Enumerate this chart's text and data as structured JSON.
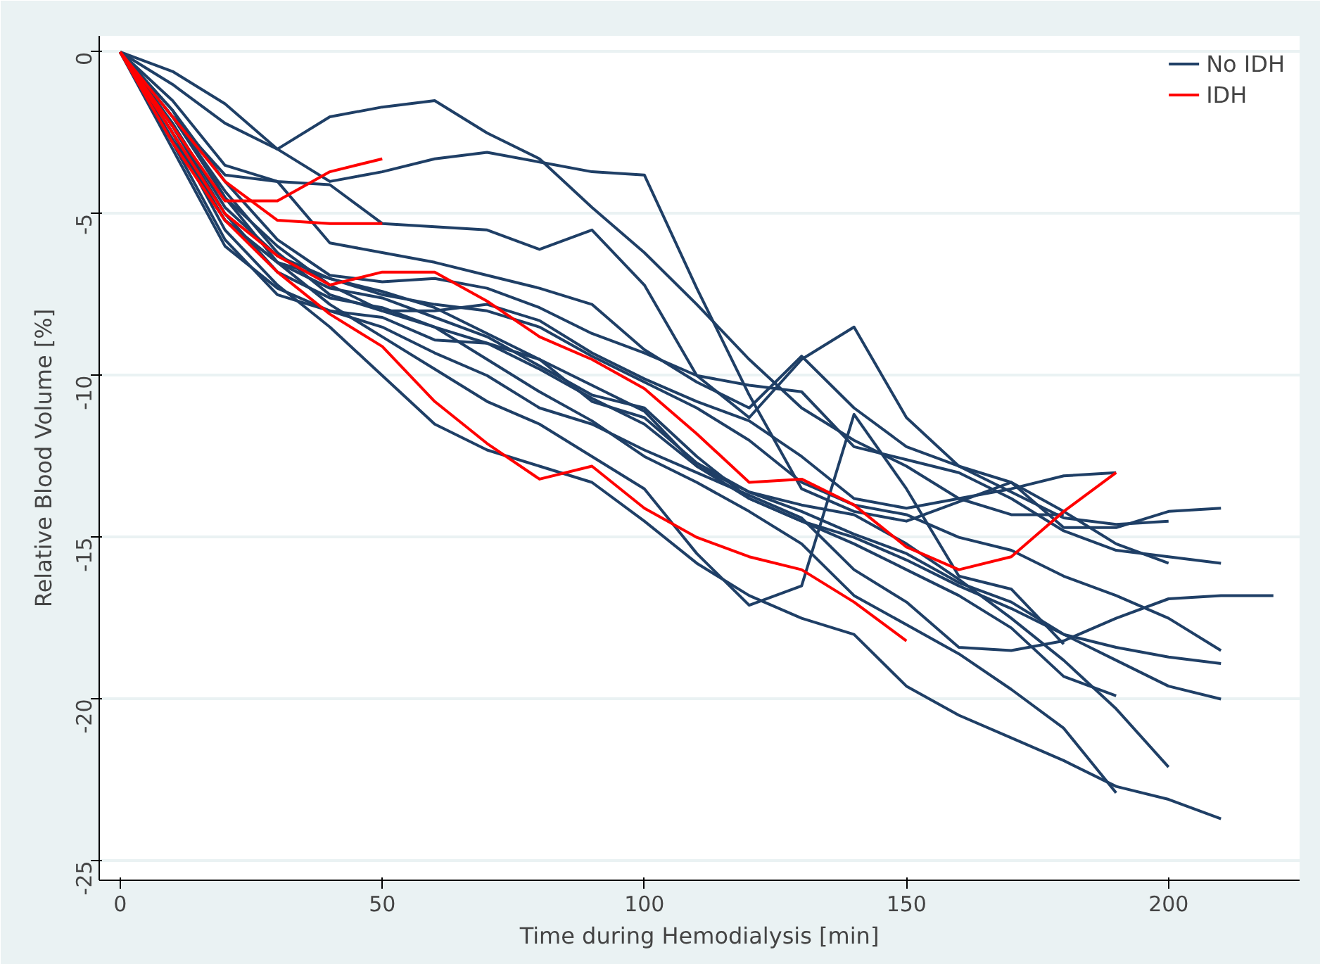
{
  "chart_data": {
    "type": "line",
    "xlabel": "Time during Hemodialysis [min]",
    "ylabel": "Relative Blood Volume [%]",
    "x": [
      0,
      10,
      20,
      30,
      40,
      50,
      60,
      70,
      80,
      90,
      100,
      110,
      120,
      130,
      140,
      150,
      160,
      170,
      180,
      190,
      200,
      210,
      220
    ],
    "xlim": [
      -4,
      225
    ],
    "ylim": [
      -25.6,
      0.5
    ],
    "xticks": [
      0,
      50,
      100,
      150,
      200
    ],
    "yticks": [
      0,
      -5,
      -10,
      -15,
      -20,
      -25
    ],
    "grid": "y",
    "legend": "top right",
    "line_style": "solid",
    "marker": "none",
    "series": [
      {
        "name": "No IDH",
        "color": "#1f3f66",
        "values": [
          0,
          -1,
          -2.2,
          -3,
          -2,
          -1.7,
          -1.5,
          -2.5,
          -3.3,
          -4.8,
          -6.2,
          -7.8,
          -9.5,
          -11,
          -12,
          -12.8,
          -13.8,
          -13.5,
          -13.1,
          -13,
          null,
          null,
          null
        ]
      },
      {
        "color": "#1f3f66",
        "values": [
          0,
          -0.6,
          -1.6,
          -3,
          -4,
          -3.7,
          -3.3,
          -3.1,
          -3.4,
          -3.7,
          -3.8,
          -7.3,
          -10.6,
          -13.5,
          -14.2,
          -14.5,
          -13.9,
          -13.3,
          -14.7,
          -14.7,
          -14.2,
          -14.1,
          null
        ]
      },
      {
        "color": "#1f3f66",
        "values": [
          0,
          -1.5,
          -3.5,
          -4,
          -4.1,
          -5.3,
          -5.4,
          -5.5,
          -6.1,
          -5.5,
          -7.2,
          -10,
          -11.3,
          -9.5,
          -8.5,
          -11.3,
          -12.8,
          -13.6,
          -14.4,
          -14.6,
          -14.5,
          null,
          null
        ]
      },
      {
        "color": "#1f3f66",
        "values": [
          0,
          -2,
          -3.8,
          -4,
          -5.9,
          -6.2,
          -6.5,
          -6.9,
          -7.3,
          -7.8,
          -9.2,
          -10.2,
          -11,
          -9.4,
          -11,
          -12.2,
          -12.8,
          -13.3,
          -14.2,
          -15.2,
          -15.8,
          null,
          null
        ]
      },
      {
        "color": "#1f3f66",
        "values": [
          0,
          -1.8,
          -4,
          -5.8,
          -6.9,
          -7.1,
          -7,
          -7.3,
          -7.9,
          -8.7,
          -9.3,
          -10,
          -10.3,
          -10.5,
          -12.2,
          -12.6,
          -13,
          -13.8,
          -14.8,
          -15.4,
          -15.6,
          -15.8,
          null
        ]
      },
      {
        "color": "#1f3f66",
        "values": [
          0,
          -3,
          -6,
          -7.3,
          -8,
          -8.5,
          -9.3,
          -10,
          -11,
          -11.5,
          -12.3,
          -13,
          -13.7,
          -14.4,
          -16,
          -17,
          -18.4,
          -18.5,
          -18.2,
          -17.5,
          -16.9,
          -16.8,
          -16.8
        ]
      },
      {
        "color": "#1f3f66",
        "values": [
          0,
          -2.2,
          -4.8,
          -6.3,
          -7,
          -7.5,
          -7.8,
          -8,
          -8.5,
          -9.4,
          -10.2,
          -11,
          -12,
          -13.3,
          -14,
          -14.3,
          -15,
          -15.4,
          -16.2,
          -16.8,
          -17.5,
          -18.5,
          null
        ]
      },
      {
        "color": "#1f3f66",
        "values": [
          0,
          -2.7,
          -5.2,
          -6.5,
          -7.3,
          -7.6,
          -8.2,
          -8.8,
          -9.7,
          -10.6,
          -11,
          -12.5,
          -13.8,
          -14.5,
          -15,
          -15.7,
          -16.5,
          -17.2,
          -18,
          -18.4,
          -18.7,
          -18.9,
          null
        ]
      },
      {
        "color": "#1f3f66",
        "values": [
          0,
          -2.3,
          -5,
          -6.8,
          -7.6,
          -7.9,
          -8.5,
          -9,
          -9.8,
          -10.7,
          -11.5,
          -12.8,
          -13.6,
          -14.2,
          -14.9,
          -15.5,
          -16.4,
          -17,
          -18,
          -18.8,
          -19.6,
          -20,
          null
        ]
      },
      {
        "color": "#1f3f66",
        "values": [
          0,
          -2.5,
          -5.2,
          -6.5,
          -7,
          -7.4,
          -7.9,
          -8.7,
          -9.5,
          -10.3,
          -11.1,
          -12.8,
          -13.8,
          -14.5,
          -15.2,
          -16,
          -16.8,
          -17.8,
          -19.3,
          -19.9,
          null,
          null,
          null
        ]
      },
      {
        "color": "#1f3f66",
        "values": [
          0,
          -2.8,
          -5.8,
          -7.5,
          -8,
          -8.2,
          -8.9,
          -9,
          -9.5,
          -10.8,
          -11.3,
          -12.7,
          -13.6,
          -14,
          -14.3,
          -15.2,
          -16.3,
          -17.5,
          -18.8,
          -20.3,
          -22.1,
          null,
          null
        ]
      },
      {
        "color": "#1f3f66",
        "values": [
          0,
          -2,
          -4.5,
          -6,
          -7.2,
          -8,
          -8.5,
          -9.5,
          -10.5,
          -11.4,
          -12.5,
          -13.3,
          -14.2,
          -15.2,
          -16.8,
          -17.7,
          -18.6,
          -19.7,
          -20.9,
          -22.9,
          null,
          null,
          null
        ]
      },
      {
        "color": "#1f3f66",
        "values": [
          0,
          -2.5,
          -5.5,
          -7.2,
          -8.5,
          -10,
          -11.5,
          -12.3,
          -12.8,
          -13.3,
          -14.5,
          -15.8,
          -16.8,
          -17.5,
          -18,
          -19.6,
          -20.5,
          -21.2,
          -21.9,
          -22.7,
          -23.1,
          -23.7,
          null
        ]
      },
      {
        "color": "#1f3f66",
        "values": [
          0,
          -2,
          -4.3,
          -6.2,
          -7.5,
          -8,
          -8,
          -7.8,
          -8.3,
          -9.3,
          -10.1,
          -10.8,
          -11.4,
          -12.5,
          -13.8,
          -14.1,
          -13.8,
          -14.3,
          -14.3,
          null,
          null,
          null,
          null
        ]
      },
      {
        "color": "#1f3f66",
        "values": [
          0,
          -1.8,
          -4.5,
          -6.5,
          -7.8,
          -8.8,
          -9.8,
          -10.8,
          -11.5,
          -12.5,
          -13.5,
          -15.5,
          -17.1,
          -16.5,
          -11.2,
          -13.5,
          -16.2,
          -16.6,
          -18.3,
          null,
          null,
          null,
          null
        ]
      },
      {
        "name": "IDH",
        "color": "#ff0000",
        "values": [
          0,
          -2.3,
          -4.6,
          -4.6,
          -3.7,
          -3.3,
          null,
          null,
          null,
          null,
          null,
          null,
          null,
          null,
          null,
          null,
          null,
          null,
          null,
          null,
          null,
          null,
          null
        ]
      },
      {
        "color": "#ff0000",
        "values": [
          0,
          -2,
          -4,
          -5.2,
          -5.3,
          -5.3,
          null,
          null,
          null,
          null,
          null,
          null,
          null,
          null,
          null,
          null,
          null,
          null,
          null,
          null,
          null,
          null,
          null
        ]
      },
      {
        "color": "#ff0000",
        "values": [
          0,
          -2.5,
          -5,
          -6.3,
          -7.2,
          -6.8,
          -6.8,
          -7.7,
          -8.8,
          -9.5,
          -10.4,
          -11.8,
          -13.3,
          -13.2,
          -14,
          -15.3,
          -16,
          -15.6,
          -14.2,
          -13,
          null,
          null,
          null
        ]
      },
      {
        "color": "#ff0000",
        "values": [
          0,
          -2.8,
          -5.2,
          -6.8,
          -8.1,
          -9.1,
          -10.8,
          -12.1,
          -13.2,
          -12.8,
          -14.1,
          -15,
          -15.6,
          -16,
          -17,
          -18.2,
          null,
          null,
          null,
          null,
          null,
          null,
          null
        ]
      }
    ]
  }
}
